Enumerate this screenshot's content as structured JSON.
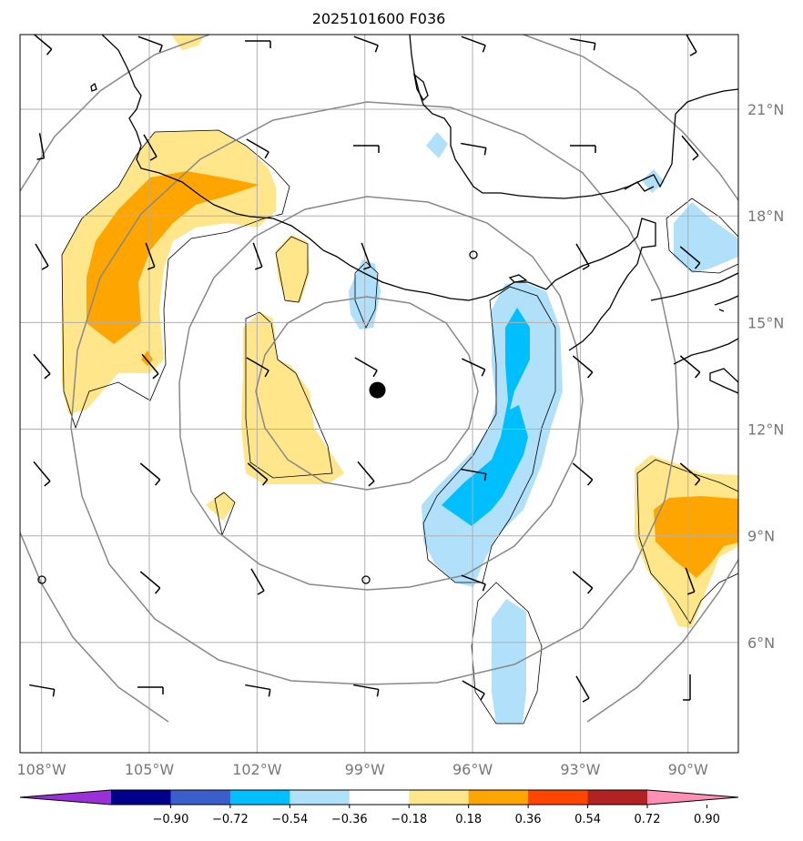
{
  "title": "2025101600 F036",
  "map": {
    "lon_range": [
      -108.6,
      -88.6
    ],
    "lat_range": [
      2.9,
      23.1
    ],
    "lon_ticks": [
      {
        "value": -108,
        "label": "108°W"
      },
      {
        "value": -105,
        "label": "105°W"
      },
      {
        "value": -102,
        "label": "102°W"
      },
      {
        "value": -99,
        "label": "99°W"
      },
      {
        "value": -96,
        "label": "96°W"
      },
      {
        "value": -93,
        "label": "93°W"
      },
      {
        "value": -90,
        "label": "90°W"
      }
    ],
    "lat_ticks": [
      {
        "value": 21,
        "label": "21°N"
      },
      {
        "value": 18,
        "label": "18°N"
      },
      {
        "value": 15,
        "label": "15°N"
      },
      {
        "value": 12,
        "label": "12°N"
      },
      {
        "value": 9,
        "label": "9°N"
      },
      {
        "value": 6,
        "label": "6°N"
      }
    ],
    "grid": true,
    "storm_center": {
      "lon": -98.65,
      "lat": 13.1
    }
  },
  "colorbar": {
    "labels": [
      "−0.90",
      "−0.72",
      "−0.54",
      "−0.36",
      "−0.18",
      "0.18",
      "0.36",
      "0.54",
      "0.72",
      "0.90"
    ],
    "colors": [
      "#9b30d9",
      "#00008b",
      "#3a5fcd",
      "#00bfff",
      "#b0e0fa",
      "#ffffff",
      "#ffe68a",
      "#ffa500",
      "#ff4500",
      "#b22222",
      "#ff8fb4"
    ],
    "extend": "both"
  },
  "colors": {
    "grid": "#b0b0b0",
    "range_rings": "#888888",
    "coast": "#000000"
  }
}
